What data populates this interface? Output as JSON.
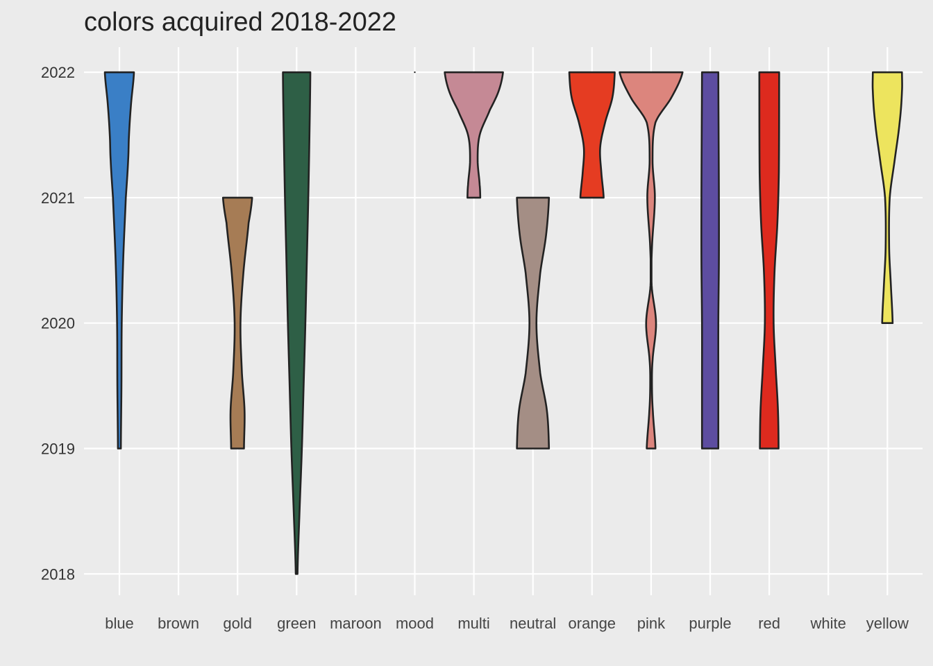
{
  "chart_data": {
    "type": "violin",
    "title": "colors acquired 2018-2022",
    "xlabel": "",
    "ylabel": "",
    "categories": [
      "blue",
      "brown",
      "gold",
      "green",
      "maroon",
      "mood",
      "multi",
      "neutral",
      "orange",
      "pink",
      "purple",
      "red",
      "white",
      "yellow"
    ],
    "y_ticks": [
      2018,
      2019,
      2020,
      2021,
      2022
    ],
    "ylim": [
      2017.83,
      2022.2
    ],
    "grid": true,
    "legend": "none",
    "background": "#ebebeb",
    "series": [
      {
        "category": "blue",
        "color": "#3a7fc6",
        "range": [
          2019,
          2022
        ],
        "profile": [
          [
            2019,
            0.05
          ],
          [
            2019.5,
            0.07
          ],
          [
            2020,
            0.08
          ],
          [
            2020.5,
            0.13
          ],
          [
            2021,
            0.22
          ],
          [
            2021.3,
            0.3
          ],
          [
            2021.5,
            0.33
          ],
          [
            2021.75,
            0.4
          ],
          [
            2022,
            0.5
          ]
        ]
      },
      {
        "category": "brown",
        "color": "#8b5a2b",
        "range": null,
        "profile": []
      },
      {
        "category": "gold",
        "color": "#a67c55",
        "range": [
          2019,
          2021
        ],
        "profile": [
          [
            2019,
            0.22
          ],
          [
            2019.3,
            0.24
          ],
          [
            2019.6,
            0.15
          ],
          [
            2020,
            0.1
          ],
          [
            2020.4,
            0.2
          ],
          [
            2020.8,
            0.38
          ],
          [
            2021,
            0.5
          ]
        ]
      },
      {
        "category": "green",
        "color": "#2e5f46",
        "range": [
          2018,
          2022
        ],
        "profile": [
          [
            2018,
            0.03
          ],
          [
            2018.5,
            0.1
          ],
          [
            2019,
            0.18
          ],
          [
            2019.5,
            0.24
          ],
          [
            2020,
            0.3
          ],
          [
            2020.5,
            0.35
          ],
          [
            2021,
            0.4
          ],
          [
            2021.5,
            0.44
          ],
          [
            2022,
            0.47
          ]
        ]
      },
      {
        "category": "maroon",
        "color": "#800000",
        "range": null,
        "profile": []
      },
      {
        "category": "mood",
        "color": "#111111",
        "range": [
          2022,
          2022
        ],
        "profile": [
          [
            2022,
            0.02
          ],
          [
            2022,
            0.02
          ]
        ]
      },
      {
        "category": "multi",
        "color": "#c58995",
        "range": [
          2021,
          2022
        ],
        "profile": [
          [
            2021,
            0.22
          ],
          [
            2021.1,
            0.2
          ],
          [
            2021.3,
            0.13
          ],
          [
            2021.5,
            0.2
          ],
          [
            2021.7,
            0.55
          ],
          [
            2021.85,
            0.85
          ],
          [
            2022,
            1.0
          ]
        ]
      },
      {
        "category": "neutral",
        "color": "#a48e85",
        "range": [
          2019,
          2021
        ],
        "profile": [
          [
            2019,
            0.55
          ],
          [
            2019.3,
            0.48
          ],
          [
            2019.6,
            0.25
          ],
          [
            2020,
            0.12
          ],
          [
            2020.4,
            0.25
          ],
          [
            2020.7,
            0.45
          ],
          [
            2021,
            0.55
          ]
        ]
      },
      {
        "category": "orange",
        "color": "#e53c22",
        "range": [
          2021,
          2022
        ],
        "profile": [
          [
            2021,
            0.4
          ],
          [
            2021.2,
            0.32
          ],
          [
            2021.4,
            0.28
          ],
          [
            2021.6,
            0.45
          ],
          [
            2021.8,
            0.7
          ],
          [
            2022,
            0.78
          ]
        ]
      },
      {
        "category": "pink",
        "color": "#dc857d",
        "range": [
          2019,
          2022
        ],
        "profile": [
          [
            2019,
            0.15
          ],
          [
            2019.3,
            0.06
          ],
          [
            2019.5,
            0.03
          ],
          [
            2019.7,
            0.05
          ],
          [
            2020,
            0.17
          ],
          [
            2020.3,
            0.02
          ],
          [
            2020.6,
            0.03
          ],
          [
            2021,
            0.13
          ],
          [
            2021.3,
            0.05
          ],
          [
            2021.6,
            0.15
          ],
          [
            2021.8,
            0.7
          ],
          [
            2022,
            1.08
          ]
        ]
      },
      {
        "category": "purple",
        "color": "#5d4da0",
        "range": [
          2019,
          2022
        ],
        "profile": [
          [
            2019,
            0.28
          ],
          [
            2019.5,
            0.28
          ],
          [
            2020,
            0.28
          ],
          [
            2020.5,
            0.3
          ],
          [
            2021,
            0.3
          ],
          [
            2021.5,
            0.29
          ],
          [
            2022,
            0.28
          ]
        ]
      },
      {
        "category": "red",
        "color": "#dd2a1e",
        "range": [
          2019,
          2022
        ],
        "profile": [
          [
            2019,
            0.32
          ],
          [
            2019.3,
            0.3
          ],
          [
            2019.6,
            0.23
          ],
          [
            2020,
            0.15
          ],
          [
            2020.4,
            0.18
          ],
          [
            2020.8,
            0.28
          ],
          [
            2021.2,
            0.33
          ],
          [
            2022,
            0.34
          ]
        ]
      },
      {
        "category": "white",
        "color": "#ffffff",
        "range": null,
        "profile": []
      },
      {
        "category": "yellow",
        "color": "#ede45e",
        "range": [
          2020,
          2022
        ],
        "profile": [
          [
            2020,
            0.18
          ],
          [
            2020.3,
            0.12
          ],
          [
            2020.6,
            0.06
          ],
          [
            2021,
            0.08
          ],
          [
            2021.3,
            0.25
          ],
          [
            2021.6,
            0.42
          ],
          [
            2021.85,
            0.5
          ],
          [
            2022,
            0.5
          ]
        ]
      }
    ]
  }
}
